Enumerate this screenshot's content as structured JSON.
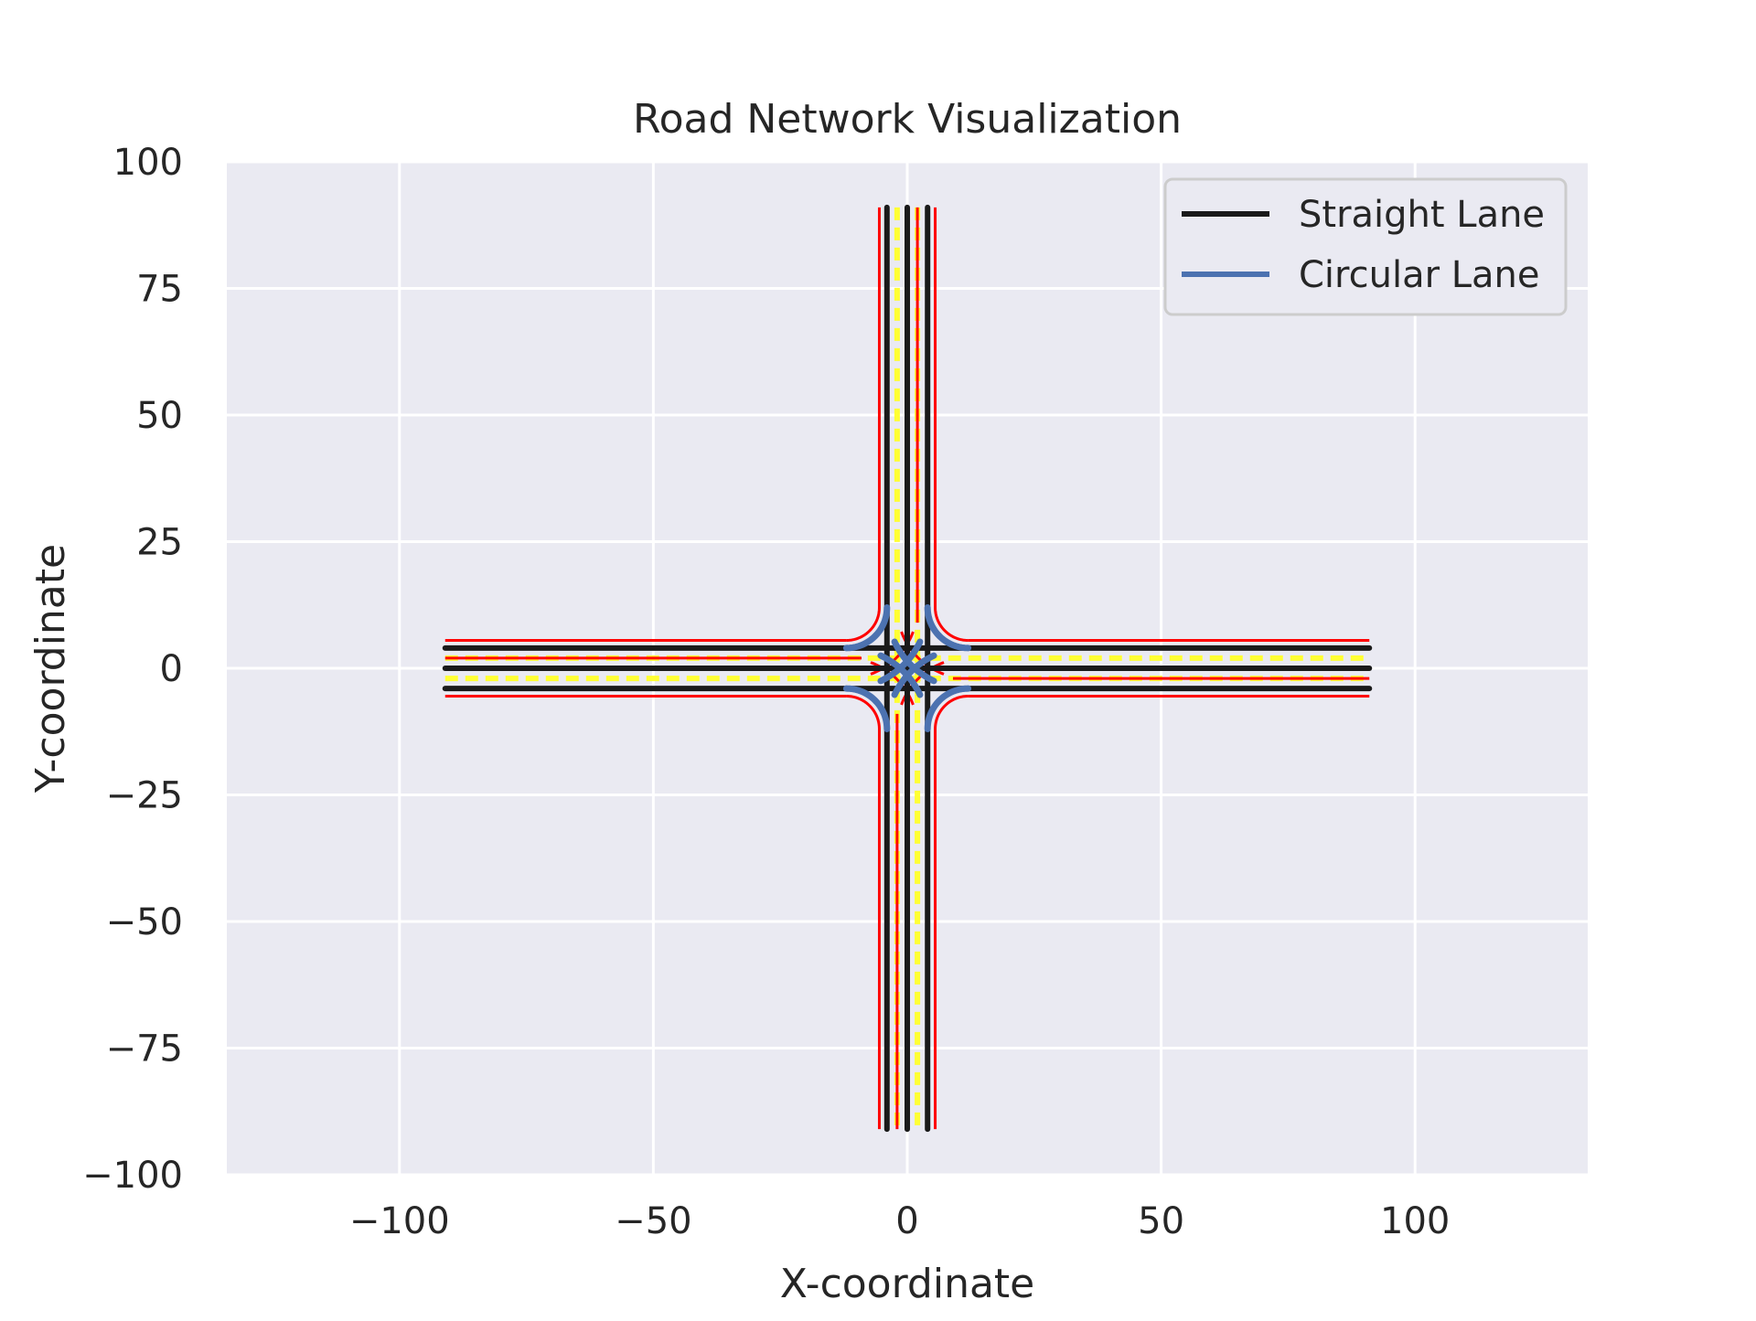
{
  "chart_data": {
    "type": "line",
    "title": "Road Network Visualization",
    "xlabel": "X-coordinate",
    "ylabel": "Y-coordinate",
    "xlim": [
      -134,
      134
    ],
    "ylim": [
      -100,
      100
    ],
    "xticks": [
      -100,
      -50,
      0,
      50,
      100
    ],
    "xtick_labels": [
      "−100",
      "−50",
      "0",
      "50",
      "100"
    ],
    "yticks": [
      -100,
      -75,
      -50,
      -25,
      0,
      25,
      50,
      75,
      100
    ],
    "ytick_labels": [
      "−100",
      "−75",
      "−50",
      "−25",
      "0",
      "25",
      "50",
      "75",
      "100"
    ],
    "grid": true,
    "legend_position": "upper right",
    "legend": [
      {
        "label": "Straight Lane",
        "color": "#1a1a1a"
      },
      {
        "label": "Circular Lane",
        "color": "#4c72b0"
      }
    ],
    "colors": {
      "plot_background": "#eaeaf2",
      "grid": "#ffffff",
      "straight_lane": "#1a1a1a",
      "circular_lane": "#4c72b0",
      "boundary": "#ff0000",
      "lane_marking": "#ffff33"
    },
    "straight_lanes": [
      {
        "from": [
          -91,
          4
        ],
        "to": [
          91,
          4
        ]
      },
      {
        "from": [
          -91,
          0
        ],
        "to": [
          91,
          0
        ]
      },
      {
        "from": [
          -91,
          -4
        ],
        "to": [
          91,
          -4
        ]
      },
      {
        "from": [
          -4,
          91
        ],
        "to": [
          -4,
          -91
        ]
      },
      {
        "from": [
          0,
          91
        ],
        "to": [
          0,
          -91
        ]
      },
      {
        "from": [
          4,
          91
        ],
        "to": [
          4,
          -91
        ]
      }
    ],
    "boundary_lines": [
      {
        "from": [
          -91,
          5.5
        ],
        "to": [
          -12,
          5.5
        ]
      },
      {
        "from": [
          12,
          5.5
        ],
        "to": [
          91,
          5.5
        ]
      },
      {
        "from": [
          -91,
          -5.5
        ],
        "to": [
          -12,
          -5.5
        ]
      },
      {
        "from": [
          12,
          -5.5
        ],
        "to": [
          91,
          -5.5
        ]
      },
      {
        "from": [
          -5.5,
          91
        ],
        "to": [
          -5.5,
          12
        ]
      },
      {
        "from": [
          -5.5,
          -12
        ],
        "to": [
          -5.5,
          -91
        ]
      },
      {
        "from": [
          5.5,
          91
        ],
        "to": [
          5.5,
          12
        ]
      },
      {
        "from": [
          5.5,
          -12
        ],
        "to": [
          5.5,
          -91
        ]
      },
      {
        "from": [
          -91,
          2
        ],
        "to": [
          -9,
          2
        ]
      },
      {
        "from": [
          9,
          -2
        ],
        "to": [
          91,
          -2
        ]
      },
      {
        "from": [
          2,
          91
        ],
        "to": [
          2,
          9
        ]
      },
      {
        "from": [
          -2,
          -9
        ],
        "to": [
          -2,
          -91
        ]
      }
    ],
    "lane_markings": [
      {
        "from": [
          -91,
          2
        ],
        "to": [
          91,
          2
        ]
      },
      {
        "from": [
          -91,
          -2
        ],
        "to": [
          91,
          -2
        ]
      },
      {
        "from": [
          -2,
          91
        ],
        "to": [
          -2,
          -91
        ]
      },
      {
        "from": [
          2,
          91
        ],
        "to": [
          2,
          -91
        ]
      }
    ],
    "circular_lanes": [
      {
        "center": [
          -12,
          12
        ],
        "radius": 8,
        "start_deg": 270,
        "end_deg": 360
      },
      {
        "center": [
          12,
          12
        ],
        "radius": 8,
        "start_deg": 180,
        "end_deg": 270
      },
      {
        "center": [
          -12,
          -12
        ],
        "radius": 8,
        "start_deg": 0,
        "end_deg": 90
      },
      {
        "center": [
          12,
          -12
        ],
        "radius": 8,
        "start_deg": 90,
        "end_deg": 180
      },
      {
        "center": [
          -12,
          12
        ],
        "radius": 16,
        "start_deg": 295,
        "end_deg": 335
      },
      {
        "center": [
          12,
          12
        ],
        "radius": 16,
        "start_deg": 205,
        "end_deg": 245
      },
      {
        "center": [
          -12,
          -12
        ],
        "radius": 16,
        "start_deg": 25,
        "end_deg": 65
      },
      {
        "center": [
          12,
          -12
        ],
        "radius": 16,
        "start_deg": 115,
        "end_deg": 155
      }
    ],
    "corner_curves": [
      {
        "center": [
          -12,
          12
        ],
        "radius": 6.5,
        "start_deg": 270,
        "end_deg": 360
      },
      {
        "center": [
          12,
          12
        ],
        "radius": 6.5,
        "start_deg": 180,
        "end_deg": 270
      },
      {
        "center": [
          -12,
          -12
        ],
        "radius": 6.5,
        "start_deg": 0,
        "end_deg": 90
      },
      {
        "center": [
          12,
          -12
        ],
        "radius": 6.5,
        "start_deg": 90,
        "end_deg": 180
      },
      {
        "center": [
          -12,
          12
        ],
        "radius": 14,
        "start_deg": 290,
        "end_deg": 340
      },
      {
        "center": [
          12,
          12
        ],
        "radius": 14,
        "start_deg": 200,
        "end_deg": 250
      },
      {
        "center": [
          -12,
          -12
        ],
        "radius": 14,
        "start_deg": 20,
        "end_deg": 70
      },
      {
        "center": [
          12,
          -12
        ],
        "radius": 14,
        "start_deg": 110,
        "end_deg": 160
      }
    ]
  }
}
